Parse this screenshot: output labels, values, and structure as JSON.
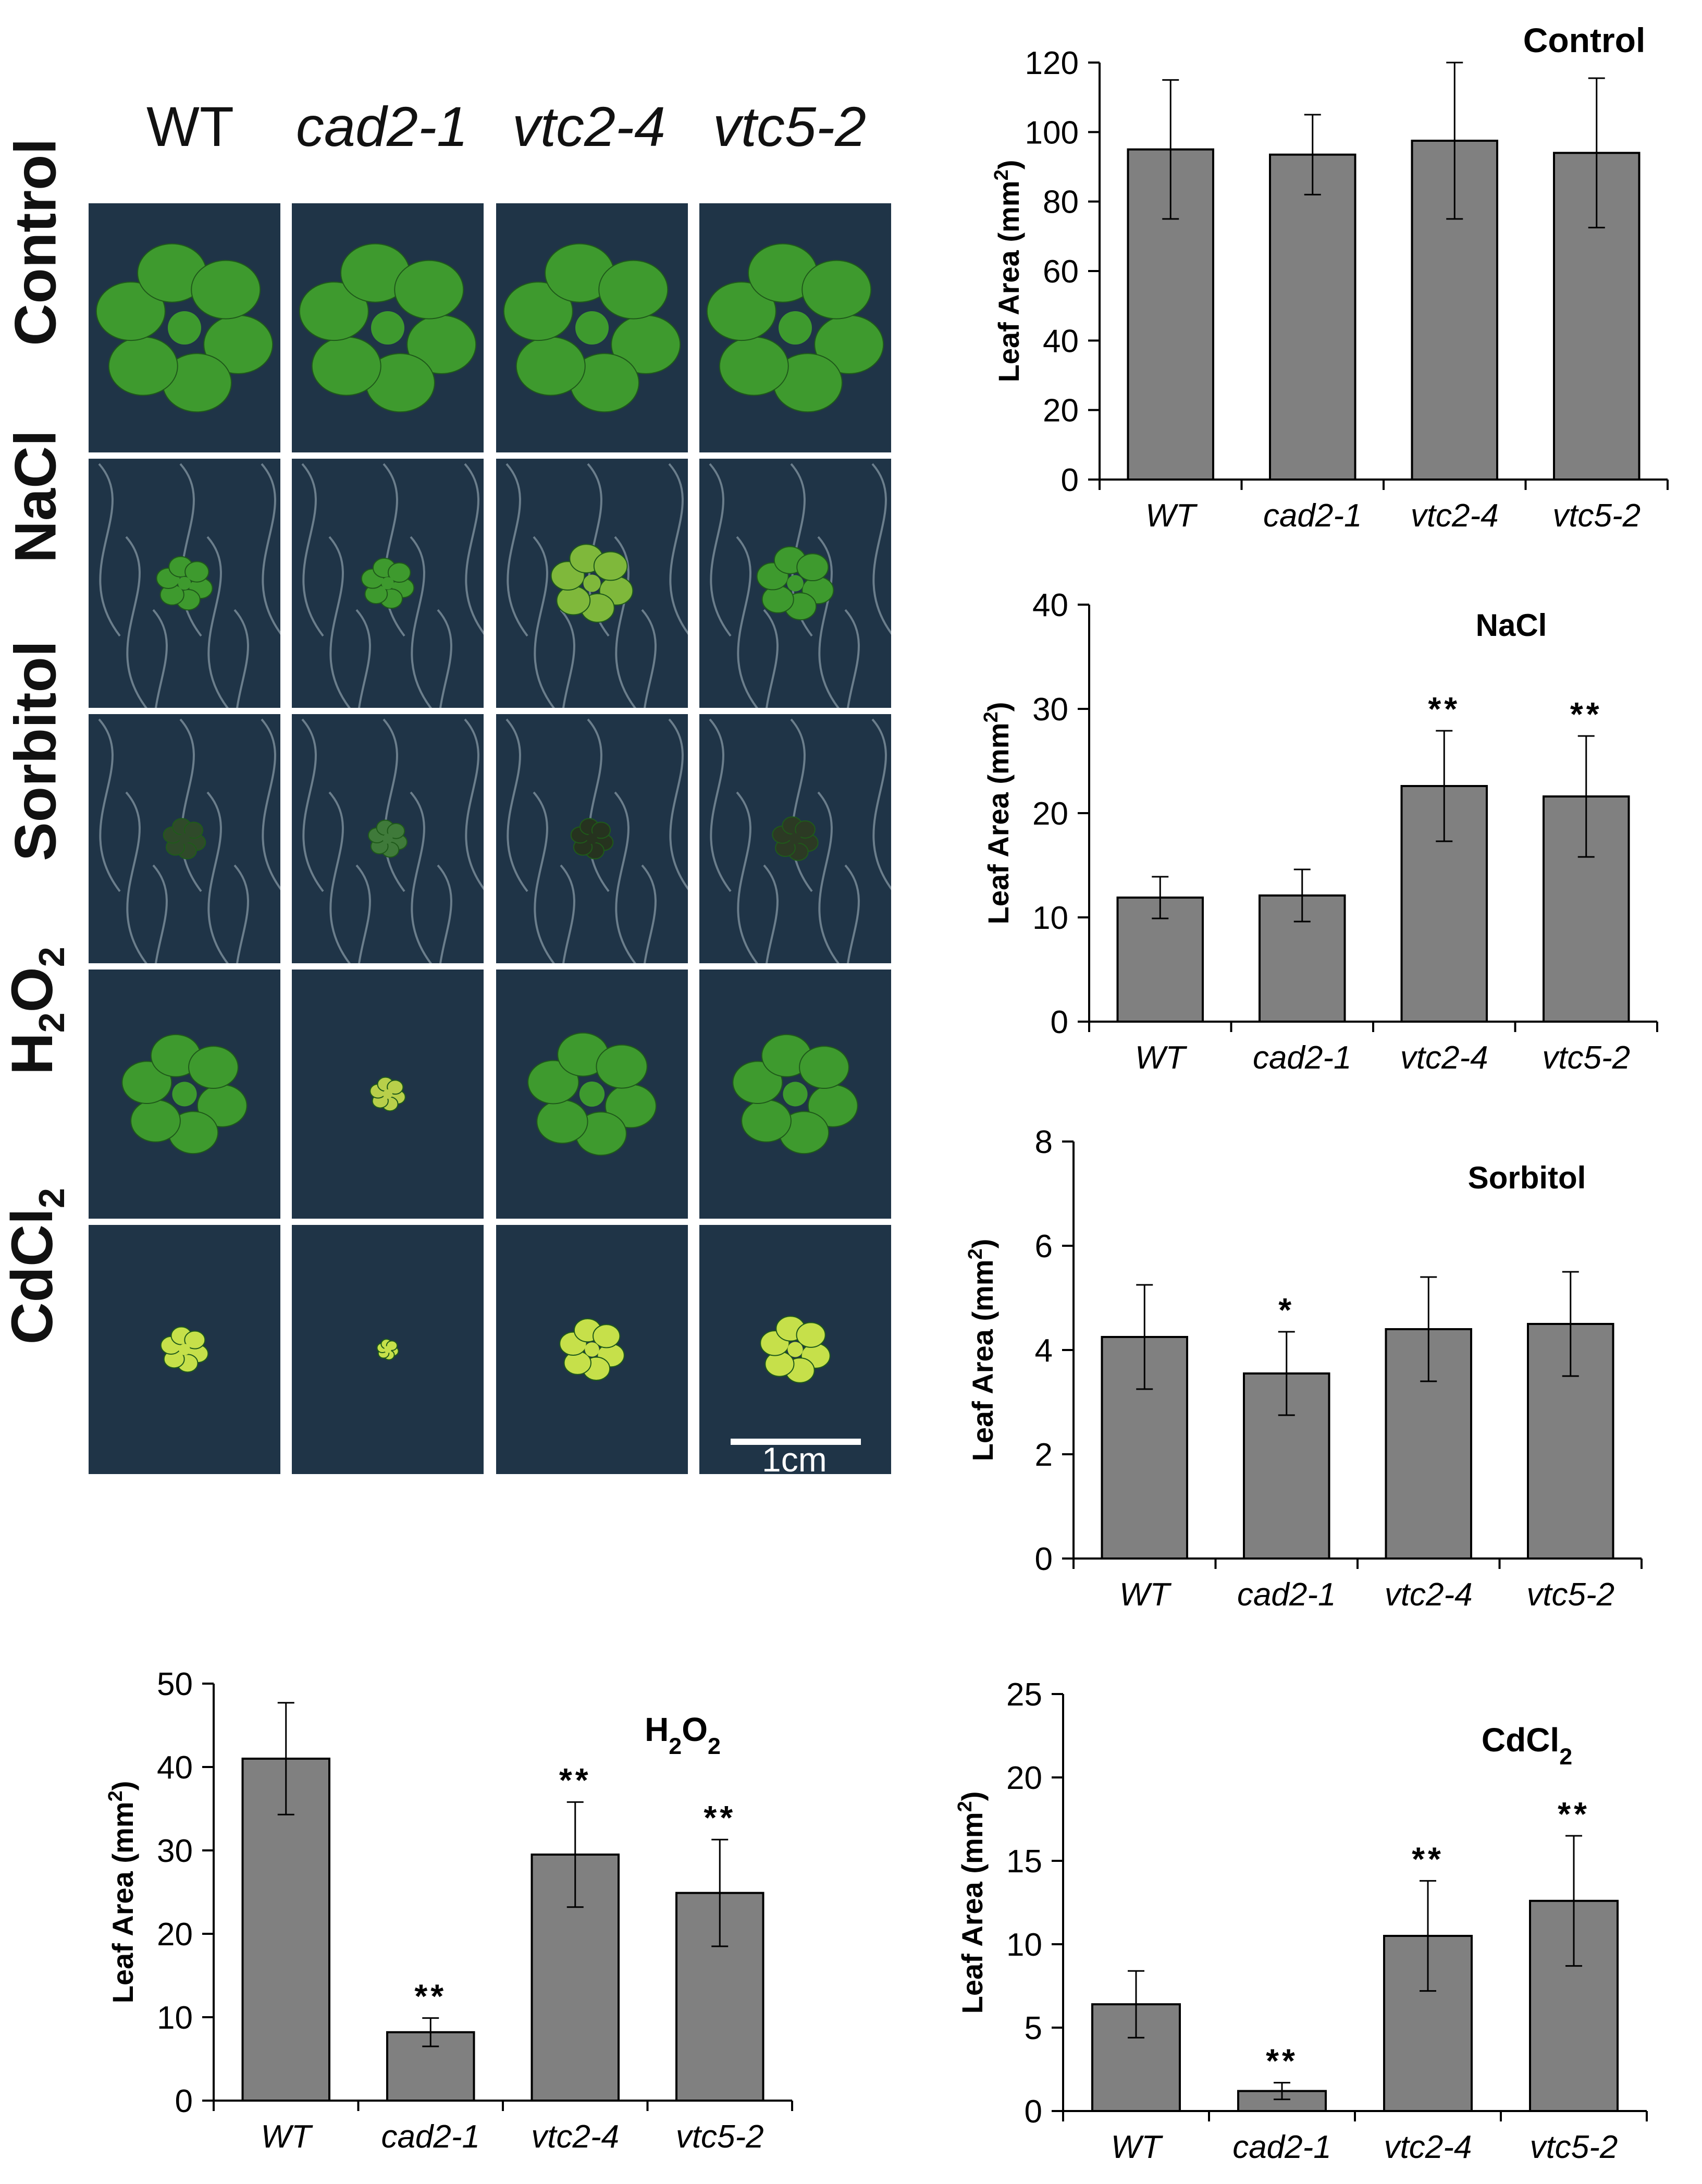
{
  "photo_grid": {
    "columns": [
      "WT",
      "cad2-1",
      "vtc2-4",
      "vtc5-2"
    ],
    "rows": [
      {
        "label": "Control",
        "sub": "",
        "tail": ""
      },
      {
        "label": "NaCl",
        "sub": "",
        "tail": ""
      },
      {
        "label": "Sorbitol",
        "sub": "",
        "tail": ""
      },
      {
        "label": "H",
        "sub": "2",
        "mid": "O",
        "sub2": "2",
        "tail": ""
      },
      {
        "label": "CdCl",
        "sub": "2",
        "tail": ""
      }
    ],
    "scale_bar_label": "1cm"
  },
  "colors": {
    "bar_fill": "#808080",
    "bar_stroke": "#000000",
    "photo_background": "#1f3447",
    "leaf_healthy": "#3e9a2e",
    "leaf_chlorotic": "#c6e04a"
  },
  "chart_data": [
    {
      "id": "control",
      "type": "bar",
      "title": "Control",
      "ylabel": "Leaf Area (mm",
      "ylabel_sup": "2",
      "ylabel_tail": ")",
      "categories": [
        "WT",
        "cad2-1",
        "vtc2-4",
        "vtc5-2"
      ],
      "values": [
        95,
        93.5,
        97.5,
        94
      ],
      "errors": [
        20,
        11.5,
        22.5,
        21.5
      ],
      "significance": [
        "",
        "",
        "",
        ""
      ],
      "ylim": [
        0,
        120
      ],
      "yticks": [
        0,
        20,
        40,
        60,
        80,
        100,
        120
      ]
    },
    {
      "id": "nacl",
      "type": "bar",
      "title": "NaCl",
      "ylabel": "Leaf Area (mm",
      "ylabel_sup": "2",
      "ylabel_tail": ")",
      "categories": [
        "WT",
        "cad2-1",
        "vtc2-4",
        "vtc5-2"
      ],
      "values": [
        11.9,
        12.1,
        22.6,
        21.6
      ],
      "errors": [
        2,
        2.5,
        5.3,
        5.8
      ],
      "significance": [
        "",
        "",
        "**",
        "**"
      ],
      "ylim": [
        0,
        40
      ],
      "yticks": [
        0,
        10,
        20,
        30,
        40
      ]
    },
    {
      "id": "sorbitol",
      "type": "bar",
      "title": "Sorbitol",
      "ylabel": "Leaf Area (mm",
      "ylabel_sup": "2",
      "ylabel_tail": ")",
      "categories": [
        "WT",
        "cad2-1",
        "vtc2-4",
        "vtc5-2"
      ],
      "values": [
        4.25,
        3.55,
        4.4,
        4.5
      ],
      "errors": [
        1.0,
        0.8,
        1.0,
        1.0
      ],
      "significance": [
        "",
        "*",
        "",
        ""
      ],
      "ylim": [
        0,
        8
      ],
      "yticks": [
        0,
        2,
        4,
        6,
        8
      ]
    },
    {
      "id": "h2o2",
      "type": "bar",
      "title": "H",
      "title_sub": "2",
      "title_mid": "O",
      "title_sub2": "2",
      "ylabel": "Leaf Area (mm",
      "ylabel_sup": "2",
      "ylabel_tail": ")",
      "categories": [
        "WT",
        "cad2-1",
        "vtc2-4",
        "vtc5-2"
      ],
      "values": [
        41,
        8.2,
        29.5,
        24.9
      ],
      "errors": [
        6.7,
        1.7,
        6.3,
        6.4
      ],
      "significance": [
        "",
        "**",
        "**",
        "**"
      ],
      "ylim": [
        0,
        50
      ],
      "yticks": [
        0,
        10,
        20,
        30,
        40,
        50
      ]
    },
    {
      "id": "cdcl2",
      "type": "bar",
      "title": "CdCl",
      "title_sub": "2",
      "ylabel": "Leaf Area (mm",
      "ylabel_sup": "2",
      "ylabel_tail": ")",
      "categories": [
        "WT",
        "cad2-1",
        "vtc2-4",
        "vtc5-2"
      ],
      "values": [
        6.4,
        1.2,
        10.5,
        12.6
      ],
      "errors": [
        2.0,
        0.5,
        3.3,
        3.9
      ],
      "significance": [
        "",
        "**",
        "**",
        "**"
      ],
      "ylim": [
        0,
        25
      ],
      "yticks": [
        0,
        5,
        10,
        15,
        20,
        25
      ]
    }
  ]
}
